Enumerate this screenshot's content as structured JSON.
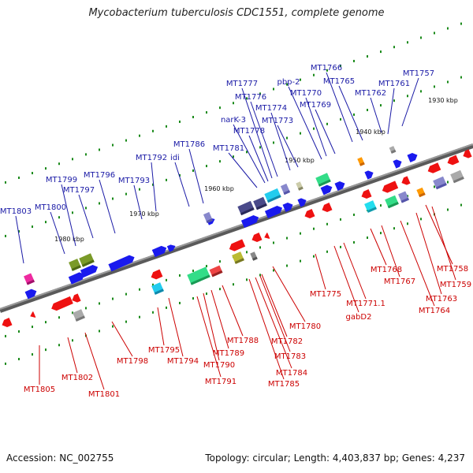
{
  "title": "Mycobacterium tuberculosis CDC1551, complete genome",
  "accession": "Accession: NC_002755",
  "topology": "Topology: circular; Length: 4,403,837 bp; Genes: 4,237",
  "colors": {
    "forward": "#1a1aa6",
    "reverse": "#cc0000",
    "backbone": "#7a7a7a"
  },
  "ticks": [
    "1930 kbp",
    "1940 kbp",
    "1950 kbp",
    "1960 kbp",
    "1970 kbp",
    "1980 kbp"
  ],
  "top_labels": [
    "MT1757",
    "MT1761",
    "MT1762",
    "MT1765",
    "MT1766",
    "pbp-2",
    "MT1769",
    "MT1770",
    "MT1773",
    "MT1774",
    "MT1776",
    "MT1777",
    "narK-3",
    "MT1778",
    "MT1781",
    "MT1786",
    "MT1792",
    "idi",
    "MT1793",
    "MT1796",
    "MT1797",
    "MT1799",
    "MT1800",
    "MT1803"
  ],
  "bottom_labels": [
    "MT1758",
    "MT1759",
    "MT1763",
    "MT1764",
    "MT1767",
    "MT1768",
    "MT1771.1",
    "gabD2",
    "MT1775",
    "MT1780",
    "MT1782",
    "MT1783",
    "MT1784",
    "MT1785",
    "MT1788",
    "MT1789",
    "MT1790",
    "MT1791",
    "MT1794",
    "MT1795",
    "MT1798",
    "MT1801",
    "MT1802",
    "MT1805"
  ]
}
